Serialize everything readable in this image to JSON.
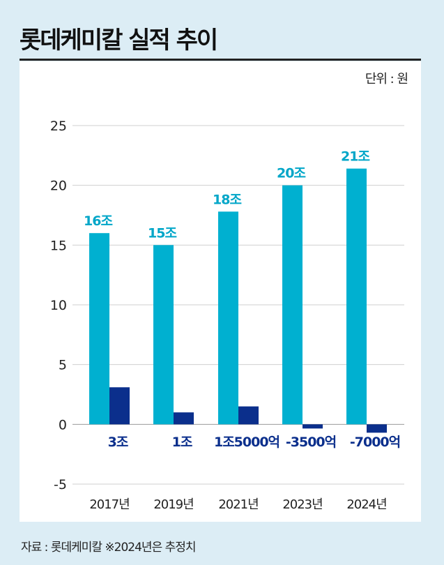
{
  "title": "롯데케미칼 실적 추이",
  "unit_label": "단위 : 원",
  "source": "자료 : 롯데케미칼  ※2024년은 추정치",
  "colors": {
    "revenue": "#00b0d0",
    "operating_profit": "#0b2f8c",
    "revenue_label": "#00a6c8",
    "profit_label": "#0b2f8c",
    "grid": "#cfcfcf"
  },
  "chart_data": {
    "type": "bar",
    "categories": [
      "2017년",
      "2019년",
      "2021년",
      "2023년",
      "2024년"
    ],
    "series": [
      {
        "values": [
          16,
          15,
          17.8,
          20,
          21.4
        ],
        "labels": [
          "16조",
          "15조",
          "18조",
          "20조",
          "21조"
        ]
      },
      {
        "values": [
          3.1,
          1.0,
          1.5,
          -0.35,
          -0.7
        ],
        "labels": [
          "3조",
          "1조",
          "1조5000억",
          "-3500억",
          "-7000억"
        ]
      }
    ],
    "ylim": [
      -5,
      25
    ],
    "yticks": [
      25,
      20,
      15,
      10,
      5,
      0,
      -5
    ],
    "grid": true
  }
}
